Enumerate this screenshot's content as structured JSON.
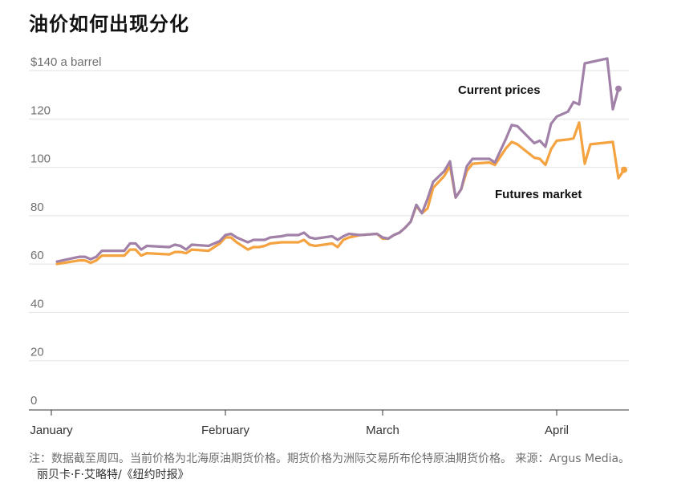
{
  "title": "油价如何出现分化",
  "note": {
    "text": "注：数据截至周四。当前价格为北海原油期货价格。期货价格为洲际交易所布伦特原油期货价格。 来源：Argus Media。",
    "credit": "丽贝卡·F·艾略特/《纽约时报》"
  },
  "chart_data": {
    "type": "line",
    "ylim": [
      0,
      140
    ],
    "ytick_labels": [
      "$140 a barrel",
      "120",
      "100",
      "80",
      "60",
      "40",
      "20",
      "0"
    ],
    "ytick_values": [
      140,
      120,
      100,
      80,
      60,
      40,
      20,
      0
    ],
    "grid": true,
    "xtick_labels": [
      "January",
      "February",
      "March",
      "April"
    ],
    "xtick_values": [
      0,
      31,
      59,
      90
    ],
    "x_unit": "days since Jan 1",
    "series": [
      {
        "name": "Current prices",
        "color": "#a181a8",
        "points": [
          [
            1,
            61
          ],
          [
            5,
            63
          ],
          [
            6,
            63
          ],
          [
            7,
            62
          ],
          [
            8,
            63
          ],
          [
            9,
            65.5
          ],
          [
            13,
            65.5
          ],
          [
            14,
            68.5
          ],
          [
            15,
            68.5
          ],
          [
            16,
            66
          ],
          [
            17,
            67.5
          ],
          [
            21,
            67
          ],
          [
            22,
            68
          ],
          [
            23,
            67.5
          ],
          [
            24,
            66
          ],
          [
            25,
            68
          ],
          [
            28,
            67.5
          ],
          [
            30,
            69.5
          ],
          [
            31,
            72
          ],
          [
            32,
            72.5
          ],
          [
            33,
            71
          ],
          [
            34,
            70
          ],
          [
            35,
            69
          ],
          [
            36,
            70
          ],
          [
            37,
            70
          ],
          [
            38,
            70
          ],
          [
            39,
            71
          ],
          [
            41,
            71.5
          ],
          [
            42,
            72
          ],
          [
            44,
            72
          ],
          [
            45,
            73
          ],
          [
            46,
            71
          ],
          [
            47,
            70.5
          ],
          [
            50,
            71.5
          ],
          [
            51,
            70
          ],
          [
            52,
            71.5
          ],
          [
            53,
            72.5
          ],
          [
            55,
            72
          ],
          [
            58,
            72.5
          ],
          [
            59,
            71
          ],
          [
            60,
            70.5
          ],
          [
            61,
            72
          ],
          [
            62,
            73
          ],
          [
            63,
            75
          ],
          [
            64,
            77.5
          ],
          [
            65,
            84.5
          ],
          [
            66,
            81
          ],
          [
            67,
            87
          ],
          [
            68,
            94
          ],
          [
            70,
            98.5
          ],
          [
            71,
            102.5
          ],
          [
            72,
            87.5
          ],
          [
            73,
            91
          ],
          [
            74,
            100.5
          ],
          [
            75,
            103.5
          ],
          [
            78,
            103.5
          ],
          [
            79,
            102
          ],
          [
            81,
            112
          ],
          [
            82,
            117.5
          ],
          [
            83,
            117
          ],
          [
            86,
            110
          ],
          [
            87,
            111
          ],
          [
            88,
            108.5
          ],
          [
            89,
            118
          ],
          [
            90,
            121
          ],
          [
            92,
            123
          ],
          [
            93,
            127
          ],
          [
            94,
            126
          ],
          [
            95,
            143
          ],
          [
            99,
            145
          ],
          [
            100,
            124
          ],
          [
            101,
            132.5
          ]
        ],
        "end_marker": true
      },
      {
        "name": "Futures market",
        "color": "#f4a340",
        "points": [
          [
            1,
            60
          ],
          [
            5,
            61.5
          ],
          [
            6,
            61.5
          ],
          [
            7,
            60.5
          ],
          [
            8,
            61.5
          ],
          [
            9,
            63.5
          ],
          [
            13,
            63.5
          ],
          [
            14,
            66
          ],
          [
            15,
            66
          ],
          [
            16,
            63.5
          ],
          [
            17,
            64.5
          ],
          [
            21,
            64
          ],
          [
            22,
            65
          ],
          [
            23,
            65
          ],
          [
            24,
            64.5
          ],
          [
            25,
            66
          ],
          [
            28,
            65.5
          ],
          [
            30,
            68.5
          ],
          [
            31,
            71
          ],
          [
            32,
            71
          ],
          [
            33,
            69
          ],
          [
            34,
            67.5
          ],
          [
            35,
            66
          ],
          [
            36,
            67
          ],
          [
            37,
            67
          ],
          [
            38,
            67.5
          ],
          [
            39,
            68.5
          ],
          [
            41,
            69
          ],
          [
            42,
            69
          ],
          [
            44,
            69
          ],
          [
            45,
            70
          ],
          [
            46,
            68
          ],
          [
            47,
            67.5
          ],
          [
            50,
            68.5
          ],
          [
            51,
            67
          ],
          [
            52,
            70
          ],
          [
            53,
            71
          ],
          [
            55,
            72
          ],
          [
            58,
            72.5
          ],
          [
            59,
            70.5
          ],
          [
            60,
            70.5
          ],
          [
            61,
            72
          ],
          [
            62,
            73
          ],
          [
            63,
            75
          ],
          [
            64,
            77.5
          ],
          [
            65,
            84
          ],
          [
            66,
            81
          ],
          [
            67,
            83
          ],
          [
            68,
            91.5
          ],
          [
            70,
            96.5
          ],
          [
            71,
            100.5
          ],
          [
            72,
            87.5
          ],
          [
            73,
            91
          ],
          [
            74,
            98.5
          ],
          [
            75,
            101.5
          ],
          [
            78,
            102
          ],
          [
            79,
            101
          ],
          [
            81,
            108
          ],
          [
            82,
            110.5
          ],
          [
            83,
            109.5
          ],
          [
            86,
            104
          ],
          [
            87,
            103.5
          ],
          [
            88,
            101
          ],
          [
            89,
            107.5
          ],
          [
            90,
            111
          ],
          [
            92,
            111.5
          ],
          [
            93,
            112
          ],
          [
            94,
            118.5
          ],
          [
            95,
            101.5
          ],
          [
            96,
            109.5
          ],
          [
            100,
            110.5
          ],
          [
            101,
            95.5
          ],
          [
            102,
            99
          ]
        ],
        "end_marker": true
      }
    ],
    "annotations": [
      "Current prices",
      "Futures market"
    ]
  }
}
